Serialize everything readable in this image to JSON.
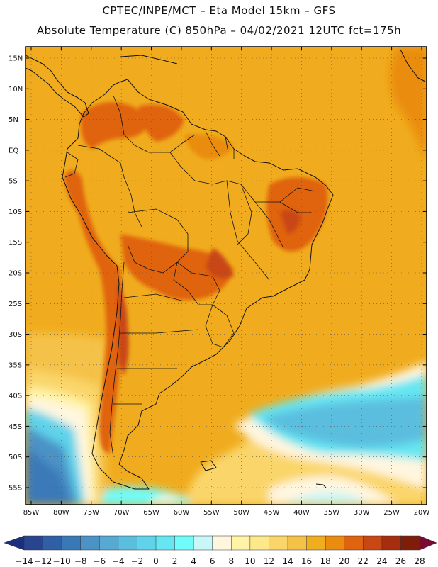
{
  "header": {
    "line1": "CPTEC/INPE/MCT –  Eta Model 15km – GFS",
    "line2": "Absolute Temperature (C) 850hPa – 04/02/2021 12UTC fct=175h"
  },
  "map": {
    "lat_labels": [
      "15N",
      "10N",
      "5N",
      "EQ",
      "5S",
      "10S",
      "15S",
      "20S",
      "25S",
      "30S",
      "35S",
      "40S",
      "45S",
      "50S",
      "55S"
    ],
    "lon_labels": [
      "85W",
      "80W",
      "75W",
      "70W",
      "65W",
      "60W",
      "55W",
      "50W",
      "45W",
      "40W",
      "35W",
      "30W",
      "25W",
      "20W"
    ],
    "lat_range": [
      15,
      -55
    ],
    "lon_range": [
      -85,
      -20
    ],
    "background_color": "#f0ac1e"
  },
  "colorbar": {
    "labels": [
      "−14",
      "−12",
      "−10",
      "−8",
      "−6",
      "−4",
      "−2",
      "0",
      "2",
      "4",
      "6",
      "8",
      "10",
      "12",
      "14",
      "16",
      "18",
      "20",
      "22",
      "24",
      "26",
      "28"
    ],
    "colors": [
      "#2a4590",
      "#2f5fa5",
      "#3a79b8",
      "#4b92c6",
      "#58a8d4",
      "#5cbedf",
      "#5ed3ea",
      "#66e6f2",
      "#6ffcfb",
      "#c9f6f7",
      "#fff6e0",
      "#fff3a6",
      "#fde88a",
      "#fad66a",
      "#f5c248",
      "#f0ad1d",
      "#ea8c10",
      "#e0630f",
      "#c94712",
      "#a62e0e",
      "#7e1e0a"
    ],
    "low_color": "#1b2f80",
    "high_color": "#7a0a30"
  }
}
